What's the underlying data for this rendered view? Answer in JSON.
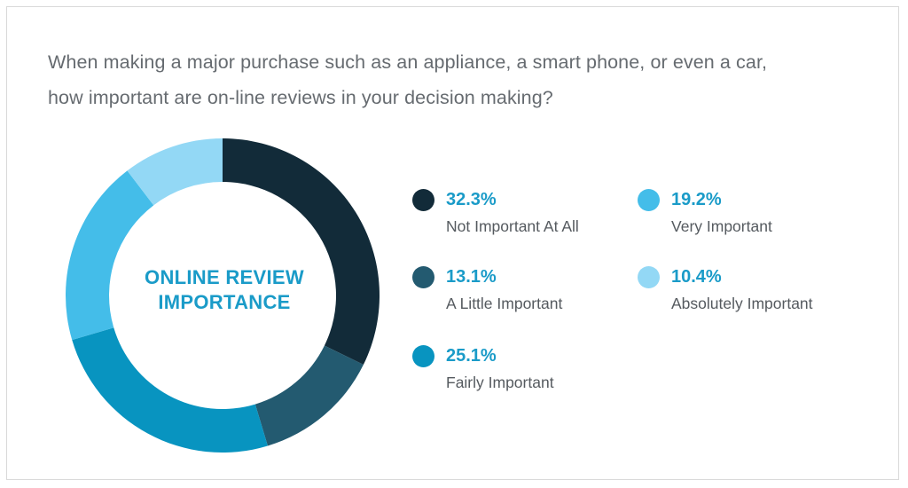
{
  "question": {
    "line1": "When making a major purchase such as an appliance, a smart phone, or even a car,",
    "line2": "how important are on-line reviews in your decision making?"
  },
  "chart_data": {
    "type": "pie",
    "title": "",
    "center_label": [
      "ONLINE REVIEW",
      "IMPORTANCE"
    ],
    "categories": [
      "Not Important At All",
      "A Little Important",
      "Fairly Important",
      "Very Important",
      "Absolutely Important"
    ],
    "values": [
      32.3,
      13.1,
      25.1,
      19.2,
      10.4
    ],
    "labels": [
      "32.3%",
      "13.1%",
      "25.1%",
      "19.2%",
      "10.4%"
    ],
    "colors": [
      "#122b39",
      "#235a70",
      "#0894c0",
      "#44bde9",
      "#93d8f5"
    ],
    "donut": true,
    "legend_position": "right"
  }
}
